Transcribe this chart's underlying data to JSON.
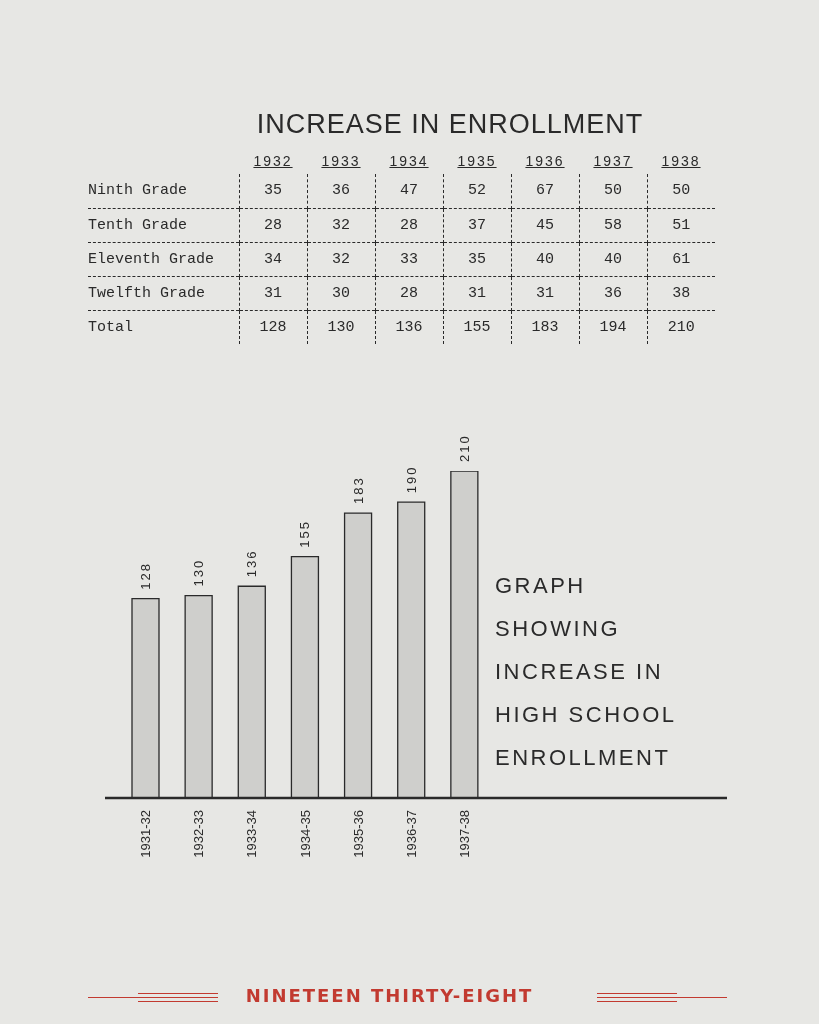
{
  "chart_data": [
    {
      "type": "heatmap",
      "title": "INCREASE IN ENROLLMENT",
      "categories": [
        "1932",
        "1933",
        "1934",
        "1935",
        "1936",
        "1937",
        "1938"
      ],
      "y_categories": [
        "Ninth Grade",
        "Tenth Grade",
        "Eleventh Grade",
        "Twelfth Grade",
        "Total"
      ],
      "cells": [
        [
          35,
          36,
          47,
          52,
          67,
          50,
          50
        ],
        [
          28,
          32,
          28,
          37,
          45,
          58,
          51
        ],
        [
          34,
          32,
          33,
          35,
          40,
          40,
          61
        ],
        [
          31,
          30,
          28,
          31,
          31,
          36,
          38
        ],
        [
          128,
          130,
          136,
          155,
          183,
          194,
          210
        ]
      ],
      "data_labels": true
    },
    {
      "type": "bar",
      "title": "GRAPH SHOWING INCREASE IN HIGH SCHOOL ENROLLMENT",
      "categories": [
        "1931-32",
        "1932-33",
        "1933-34",
        "1934-35",
        "1935-36",
        "1936-37",
        "1937-38"
      ],
      "values": [
        128,
        130,
        136,
        155,
        183,
        190,
        210
      ],
      "color": "#cfcfcc",
      "data_labels": true,
      "annotations": [
        "NINETEEN THIRTY-EIGHT"
      ]
    }
  ]
}
